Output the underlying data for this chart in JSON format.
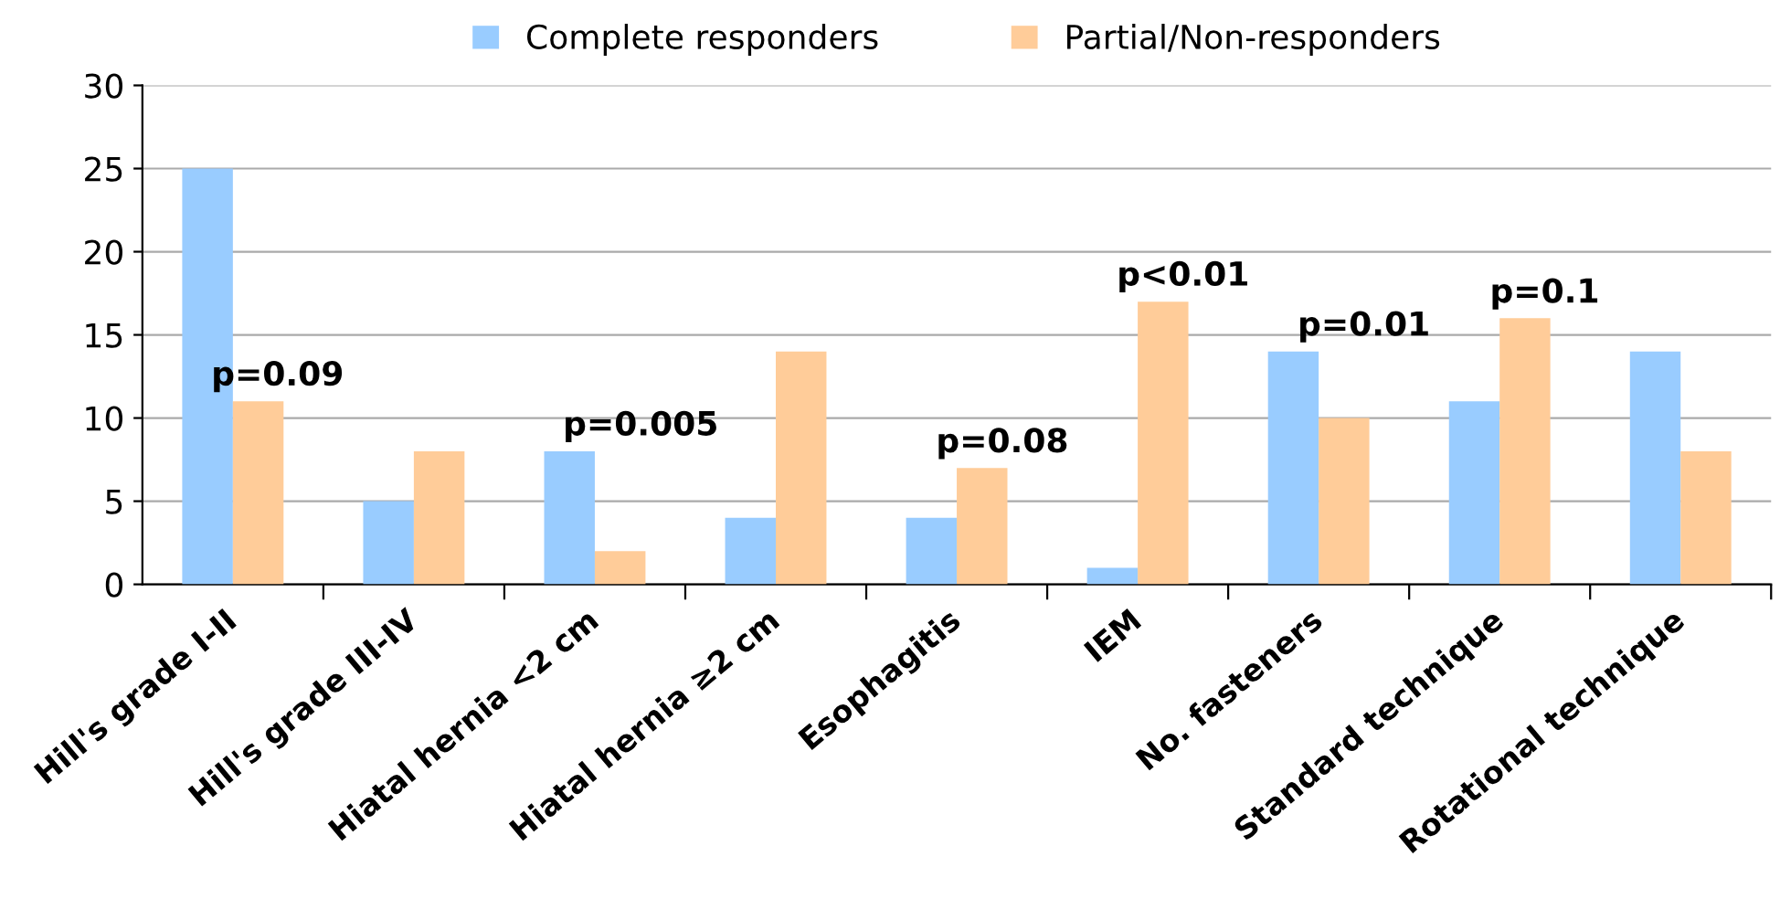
{
  "chart_data": {
    "type": "bar",
    "categories": [
      "Hill's grade I-II",
      "Hill's grade III-IV",
      "Hiatal hernia <2 cm",
      "Hiatal hernia ≥2 cm",
      "Esophagitis",
      "IEM",
      "No. fasteners",
      "Standard technique",
      "Rotational technique"
    ],
    "series": [
      {
        "name": "Complete responders",
        "color": "#99ccff",
        "values": [
          25,
          5,
          8,
          4,
          4,
          1,
          14,
          11,
          14
        ]
      },
      {
        "name": "Partial/Non-responders",
        "color": "#ffcc99",
        "values": [
          11,
          8,
          2,
          14,
          7,
          17,
          10,
          16,
          8
        ]
      }
    ],
    "ylim": [
      0,
      30
    ],
    "yticks": [
      0,
      5,
      10,
      15,
      20,
      25,
      30
    ],
    "grid": "y",
    "legend": "top",
    "annotations": [
      "p=0.09",
      "p=0.005",
      "p=0.08",
      "p<0.01",
      "p=0.01",
      "p=0.1"
    ]
  }
}
